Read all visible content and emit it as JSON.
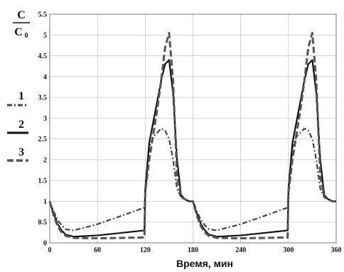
{
  "chart_data": {
    "type": "line",
    "ylabel": {
      "numerator": "C",
      "denominator": "C",
      "denominator_sub": "0"
    },
    "xlabel": "Время, мин",
    "xlim": [
      0,
      360
    ],
    "ylim": [
      0,
      5.5
    ],
    "xticks": [
      0,
      60,
      120,
      180,
      240,
      300,
      360
    ],
    "yticks": [
      0,
      0.5,
      1,
      1.5,
      2,
      2.5,
      3,
      3.5,
      4,
      4.5,
      5,
      5.5
    ],
    "grid": true,
    "legend_position": "left",
    "series": [
      {
        "name": "1",
        "style": "dashdot",
        "color": "#444444",
        "x": [
          0,
          5,
          10,
          15,
          20,
          30,
          60,
          90,
          119,
          120,
          125,
          130,
          135,
          140,
          145,
          150,
          155,
          160,
          165,
          170,
          175,
          180,
          185,
          190,
          195,
          200,
          210,
          240,
          270,
          299,
          300,
          305,
          310,
          315,
          320,
          325,
          330,
          335,
          340,
          345,
          350,
          355,
          360
        ],
        "y": [
          1.0,
          0.75,
          0.55,
          0.42,
          0.33,
          0.3,
          0.45,
          0.65,
          0.85,
          1.2,
          2.3,
          2.55,
          2.65,
          2.75,
          2.7,
          2.5,
          2.0,
          1.3,
          1.1,
          1.05,
          1.0,
          1.0,
          0.75,
          0.55,
          0.42,
          0.33,
          0.3,
          0.45,
          0.65,
          0.85,
          1.2,
          2.3,
          2.55,
          2.65,
          2.75,
          2.7,
          2.5,
          2.0,
          1.3,
          1.1,
          1.05,
          1.0,
          1.0
        ]
      },
      {
        "name": "2",
        "style": "solid",
        "color": "#111111",
        "x": [
          0,
          5,
          10,
          15,
          20,
          30,
          60,
          90,
          119,
          120,
          125,
          130,
          135,
          140,
          145,
          150,
          155,
          160,
          165,
          170,
          175,
          180,
          185,
          190,
          195,
          200,
          210,
          240,
          270,
          299,
          300,
          305,
          310,
          315,
          320,
          325,
          330,
          335,
          340,
          345,
          350,
          355,
          360
        ],
        "y": [
          1.0,
          0.7,
          0.45,
          0.3,
          0.2,
          0.15,
          0.18,
          0.24,
          0.3,
          1.3,
          2.4,
          2.9,
          3.4,
          3.9,
          4.3,
          4.4,
          3.6,
          2.0,
          1.15,
          1.05,
          1.0,
          1.0,
          0.7,
          0.45,
          0.3,
          0.2,
          0.15,
          0.18,
          0.24,
          0.3,
          1.3,
          2.4,
          2.9,
          3.4,
          3.9,
          4.3,
          4.4,
          3.6,
          2.0,
          1.15,
          1.05,
          1.0,
          1.0
        ]
      },
      {
        "name": "3",
        "style": "dashed",
        "color": "#555555",
        "x": [
          0,
          5,
          10,
          15,
          20,
          30,
          60,
          90,
          119,
          120,
          125,
          130,
          135,
          140,
          145,
          150,
          155,
          160,
          165,
          170,
          175,
          180,
          185,
          190,
          195,
          200,
          210,
          240,
          270,
          299,
          300,
          305,
          310,
          315,
          320,
          325,
          330,
          335,
          340,
          345,
          350,
          355,
          360
        ],
        "y": [
          1.0,
          0.65,
          0.4,
          0.25,
          0.17,
          0.12,
          0.11,
          0.12,
          0.13,
          1.2,
          2.0,
          2.6,
          3.2,
          3.9,
          4.7,
          5.05,
          3.9,
          1.6,
          1.1,
          1.05,
          1.0,
          1.0,
          0.65,
          0.4,
          0.25,
          0.17,
          0.12,
          0.11,
          0.12,
          0.13,
          1.2,
          2.0,
          2.6,
          3.2,
          3.9,
          4.7,
          5.05,
          3.9,
          1.6,
          1.1,
          1.05,
          1.0,
          1.0
        ]
      }
    ]
  }
}
